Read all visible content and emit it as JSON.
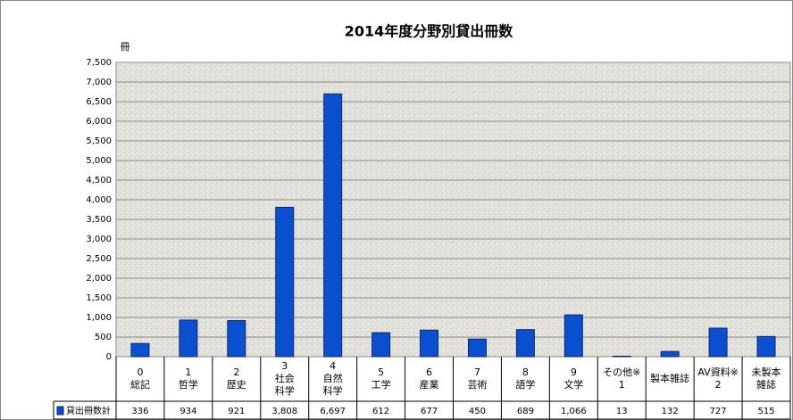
{
  "chart_data": {
    "type": "bar",
    "title": "2014年度分野別貸出冊数",
    "y_unit": "冊",
    "categories": [
      [
        "0",
        "総記"
      ],
      [
        "1",
        "哲学"
      ],
      [
        "2",
        "歴史"
      ],
      [
        "3",
        "社会",
        "科学"
      ],
      [
        "4",
        "自然",
        "科学"
      ],
      [
        "5",
        "工学"
      ],
      [
        "6",
        "産業"
      ],
      [
        "7",
        "芸術"
      ],
      [
        "8",
        "語学"
      ],
      [
        "9",
        "文学"
      ],
      [
        "その他※",
        "1"
      ],
      [
        "製本雑誌"
      ],
      [
        "AV資料※",
        "2"
      ],
      [
        "未製本",
        "雑誌"
      ]
    ],
    "series": [
      {
        "name": "貸出冊数計",
        "color": "#0a4fd0",
        "values": [
          336,
          934,
          921,
          3808,
          6697,
          612,
          677,
          450,
          689,
          1066,
          13,
          132,
          727,
          515
        ],
        "value_labels": [
          "336",
          "934",
          "921",
          "3,808",
          "6,697",
          "612",
          "677",
          "450",
          "689",
          "1,066",
          "13",
          "132",
          "727",
          "515"
        ]
      }
    ],
    "ylim": [
      0,
      7500
    ],
    "yticks": [
      0,
      500,
      {
        "value": 1000,
        "label": "1,000"
      },
      {
        "value": 1500,
        "label": "1,500"
      },
      {
        "value": 2000,
        "label": "2,000"
      },
      {
        "value": 2500,
        "label": "2,500"
      },
      {
        "value": 3000,
        "label": "3,000"
      },
      {
        "value": 3500,
        "label": "3,500"
      },
      {
        "value": 4000,
        "label": "4,000"
      },
      {
        "value": 4500,
        "label": "4,500"
      },
      {
        "value": 5000,
        "label": "5,000"
      },
      {
        "value": 5500,
        "label": "5,500"
      },
      {
        "value": 6000,
        "label": "6,000"
      },
      {
        "value": 6500,
        "label": "6,500"
      },
      {
        "value": 7000,
        "label": "7,000"
      },
      {
        "value": 7500,
        "label": "7,500"
      }
    ],
    "grid": true
  }
}
